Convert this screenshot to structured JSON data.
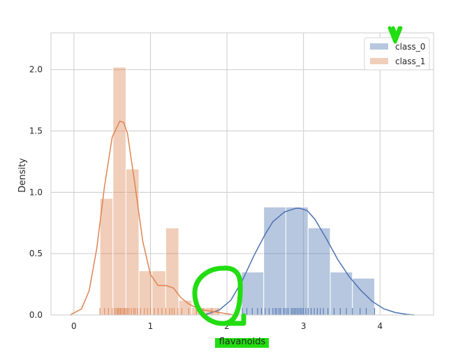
{
  "chart_data": {
    "type": "histogram_kde_rug",
    "xlabel": "flavanoids",
    "ylabel": "Density",
    "xlim": [
      -0.3,
      4.7
    ],
    "ylim": [
      0,
      2.3
    ],
    "x_ticks": [
      0,
      1,
      2,
      3,
      4
    ],
    "y_ticks": [
      0.0,
      0.5,
      1.0,
      1.5,
      2.0
    ],
    "grid": true,
    "legend": {
      "position": "top-right",
      "entries": [
        "class_0",
        "class_1"
      ]
    },
    "series": [
      {
        "name": "class_0",
        "color": "#4c72b0",
        "hist": {
          "bin_edges": [
            2.19,
            2.48,
            2.77,
            3.06,
            3.35,
            3.64,
            3.93
          ],
          "densities": [
            0.35,
            0.88,
            0.88,
            0.71,
            0.35,
            0.3
          ]
        },
        "kde": {
          "x": [
            1.7,
            1.9,
            2.05,
            2.2,
            2.35,
            2.5,
            2.6,
            2.75,
            2.9,
            2.95,
            3.05,
            3.15,
            3.3,
            3.45,
            3.6,
            3.75,
            3.9,
            4.05,
            4.2,
            4.35,
            4.45
          ],
          "y": [
            0.0,
            0.04,
            0.12,
            0.28,
            0.48,
            0.66,
            0.76,
            0.84,
            0.87,
            0.87,
            0.85,
            0.78,
            0.62,
            0.45,
            0.31,
            0.2,
            0.11,
            0.05,
            0.02,
            0.005,
            0.0
          ]
        },
        "rug": [
          2.2,
          2.26,
          2.33,
          2.4,
          2.45,
          2.5,
          2.55,
          2.6,
          2.63,
          2.65,
          2.68,
          2.7,
          2.74,
          2.76,
          2.78,
          2.8,
          2.84,
          2.86,
          2.88,
          2.9,
          2.92,
          2.94,
          2.96,
          2.98,
          3.0,
          3.03,
          3.06,
          3.1,
          3.14,
          3.18,
          3.22,
          3.26,
          3.32,
          3.4,
          3.48,
          3.56,
          3.64,
          3.74,
          3.82,
          3.93
        ]
      },
      {
        "name": "class_1",
        "color": "#dd8452",
        "hist": {
          "bin_edges": [
            0.34,
            0.51,
            0.68,
            0.85,
            1.02,
            1.2,
            1.37,
            1.54,
            1.71,
            1.89
          ],
          "densities": [
            0.95,
            2.02,
            1.19,
            0.36,
            0.36,
            0.71,
            0.12,
            0.06,
            0.06
          ]
        },
        "kde": {
          "x": [
            -0.05,
            0.1,
            0.2,
            0.3,
            0.4,
            0.5,
            0.6,
            0.65,
            0.7,
            0.8,
            0.9,
            1.0,
            1.1,
            1.2,
            1.3,
            1.4,
            1.5,
            1.6,
            1.7,
            1.8,
            1.9,
            2.0,
            2.1
          ],
          "y": [
            0.0,
            0.05,
            0.2,
            0.55,
            1.05,
            1.45,
            1.58,
            1.57,
            1.48,
            1.05,
            0.6,
            0.33,
            0.24,
            0.24,
            0.22,
            0.14,
            0.09,
            0.06,
            0.04,
            0.03,
            0.02,
            0.01,
            0.0
          ]
        },
        "rug": [
          0.34,
          0.4,
          0.45,
          0.5,
          0.53,
          0.55,
          0.57,
          0.58,
          0.6,
          0.61,
          0.63,
          0.65,
          0.66,
          0.68,
          0.7,
          0.72,
          0.75,
          0.78,
          0.8,
          0.83,
          0.87,
          0.92,
          0.96,
          1.0,
          1.05,
          1.1,
          1.15,
          1.2,
          1.25,
          1.28,
          1.31,
          1.36,
          1.41,
          1.5,
          1.6,
          1.7,
          1.8,
          1.89
        ]
      }
    ]
  },
  "annotations": {
    "color": "#22dd11",
    "highlight_label": "flavanoids"
  }
}
